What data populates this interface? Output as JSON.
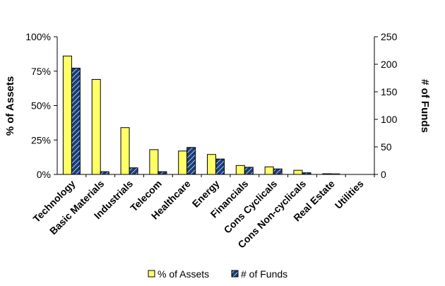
{
  "chart_data": {
    "type": "bar",
    "categories": [
      "Technology",
      "Basic Materials",
      "Industrials",
      "Telecom",
      "Healthcare",
      "Energy",
      "Financials",
      "Cons Cyclicals",
      "Cons Non-cyclicals",
      "Real Estate",
      "Utilities"
    ],
    "series": [
      {
        "name": "% of Assets",
        "axis": "left",
        "color": "#ffff66",
        "values": [
          86,
          69,
          34,
          18,
          17,
          14.5,
          6.5,
          5.5,
          3,
          0.5,
          0
        ]
      },
      {
        "name": "# of Funds",
        "axis": "right",
        "color": "#1f3b73",
        "pattern": "diagonal hatch, light blue",
        "values": [
          193,
          5,
          12,
          5,
          49,
          28,
          13,
          10,
          3,
          1,
          0
        ]
      }
    ],
    "ylabel": "% of Assets",
    "y2label": "# of Funds",
    "ylim": [
      0,
      100
    ],
    "y2lim": [
      0,
      250
    ],
    "yticks": [
      "0%",
      "25%",
      "50%",
      "75%",
      "100%"
    ],
    "y2ticks": [
      "0",
      "50",
      "100",
      "150",
      "200",
      "250"
    ],
    "grid": false,
    "legend": "bottom"
  }
}
